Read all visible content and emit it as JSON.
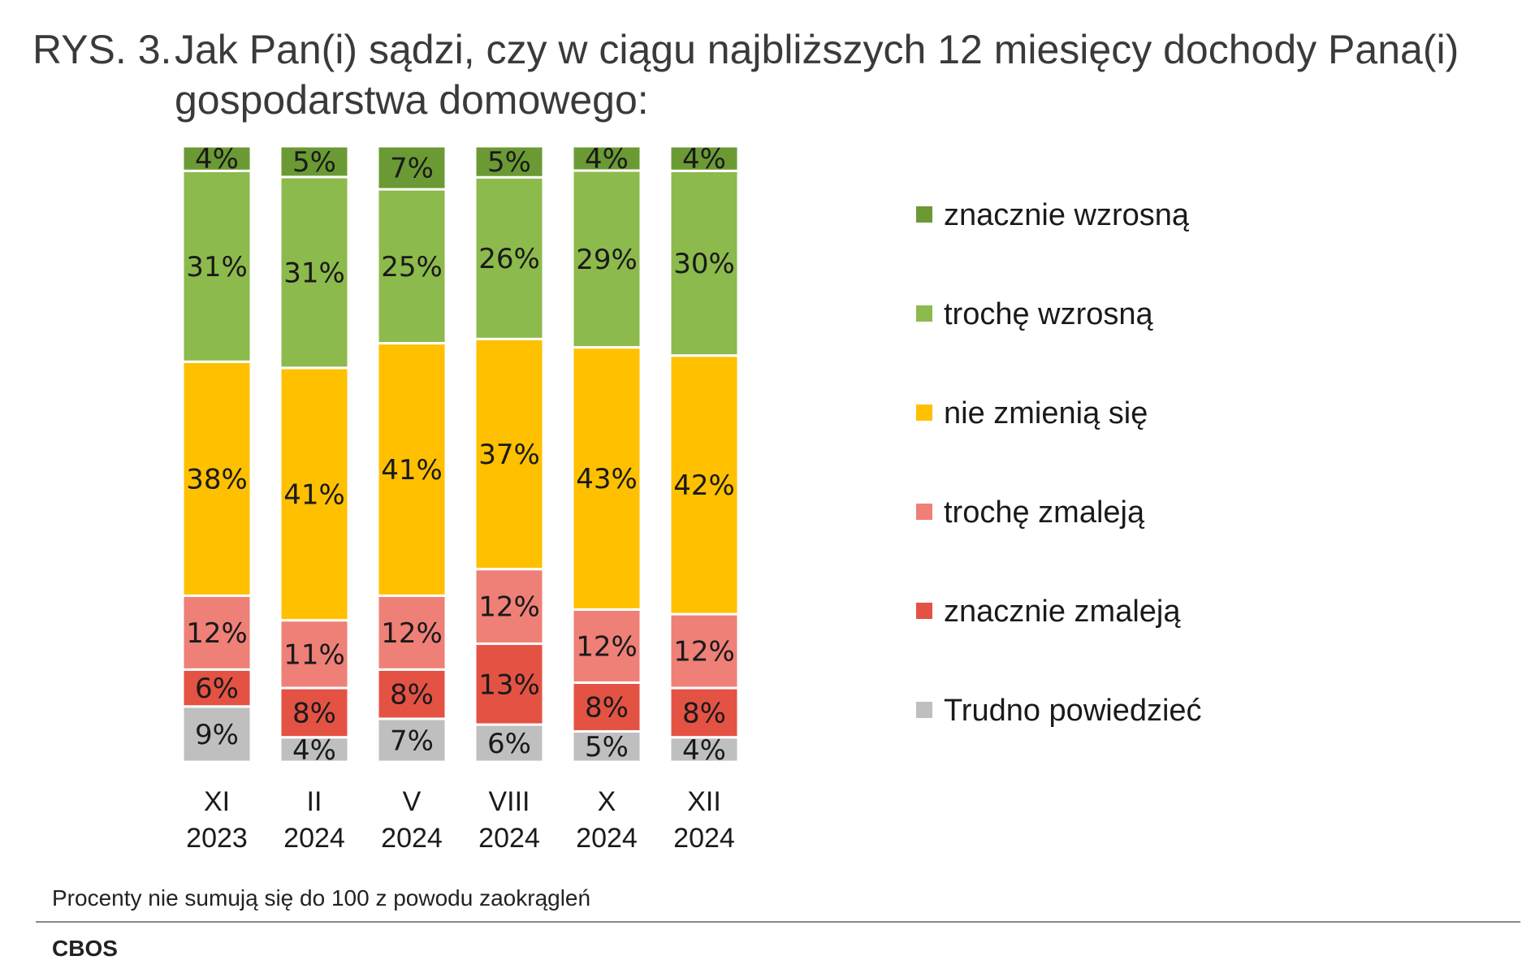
{
  "title": {
    "number": "RYS. 3.",
    "text": "Jak Pan(i) sądzi, czy w ciągu najbliższych 12 miesięcy dochody Pana(i) gospodarstwa domowego:"
  },
  "chart_data": {
    "type": "bar",
    "stacked": true,
    "orientation": "vertical",
    "categories": [
      "XI\n2023",
      "II\n2024",
      "V\n2024",
      "VIII\n2024",
      "X\n2024",
      "XII\n2024"
    ],
    "ylim": [
      0,
      100
    ],
    "grid": false,
    "legend_position": "right",
    "series": [
      {
        "name": "Trudno powiedzieć",
        "color": "#BFBFBF",
        "values": [
          9,
          4,
          7,
          6,
          5,
          4
        ]
      },
      {
        "name": "znacznie zmaleją",
        "color": "#E45244",
        "values": [
          6,
          8,
          8,
          13,
          8,
          8
        ]
      },
      {
        "name": "trochę zmaleją",
        "color": "#EE8077",
        "values": [
          12,
          11,
          12,
          12,
          12,
          12
        ]
      },
      {
        "name": "nie zmienią się",
        "color": "#FFC000",
        "values": [
          38,
          41,
          41,
          37,
          43,
          42
        ]
      },
      {
        "name": "trochę wzrosną",
        "color": "#8DBA4C",
        "values": [
          31,
          31,
          25,
          26,
          29,
          30
        ]
      },
      {
        "name": "znacznie wzrosną",
        "color": "#6B9A34",
        "values": [
          4,
          5,
          7,
          5,
          4,
          4
        ]
      }
    ]
  },
  "footnote": "Procenty nie sumują się do 100 z powodu zaokrągleń",
  "source": "CBOS"
}
